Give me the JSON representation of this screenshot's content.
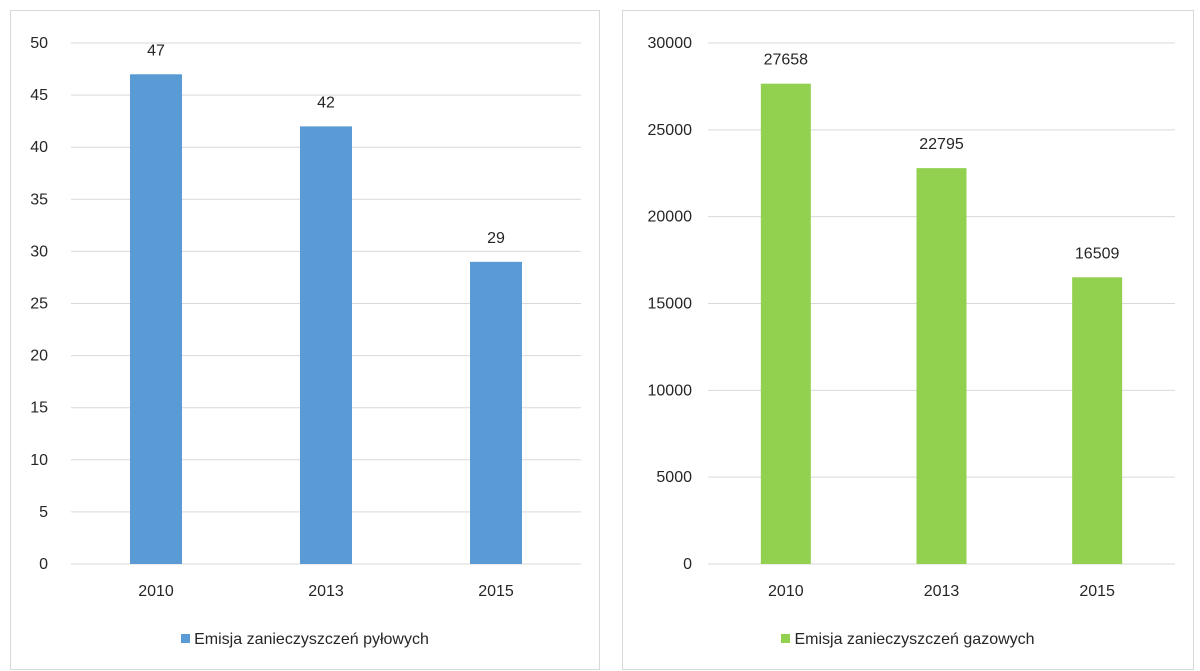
{
  "chart_data": [
    {
      "type": "bar",
      "categories": [
        "2010",
        "2013",
        "2015"
      ],
      "series": [
        {
          "name": "Emisja zanieczyszczeń pyłowych",
          "values": [
            47,
            42,
            29
          ],
          "color": "#5b9bd5"
        }
      ],
      "yticks": [
        "0",
        "5",
        "10",
        "15",
        "20",
        "25",
        "30",
        "35",
        "40",
        "45",
        "50"
      ],
      "ylim": [
        0,
        50
      ],
      "grid": true,
      "legend": "bottom",
      "data_labels": [
        "47",
        "42",
        "29"
      ]
    },
    {
      "type": "bar",
      "categories": [
        "2010",
        "2013",
        "2015"
      ],
      "series": [
        {
          "name": "Emisja zanieczyszczeń gazowych",
          "values": [
            27658,
            22795,
            16509
          ],
          "color": "#92d050"
        }
      ],
      "yticks": [
        "0",
        "5000",
        "10000",
        "15000",
        "20000",
        "25000",
        "30000"
      ],
      "ylim": [
        0,
        30000
      ],
      "grid": true,
      "legend": "bottom",
      "data_labels": [
        "27658",
        "22795",
        "16509"
      ]
    }
  ]
}
